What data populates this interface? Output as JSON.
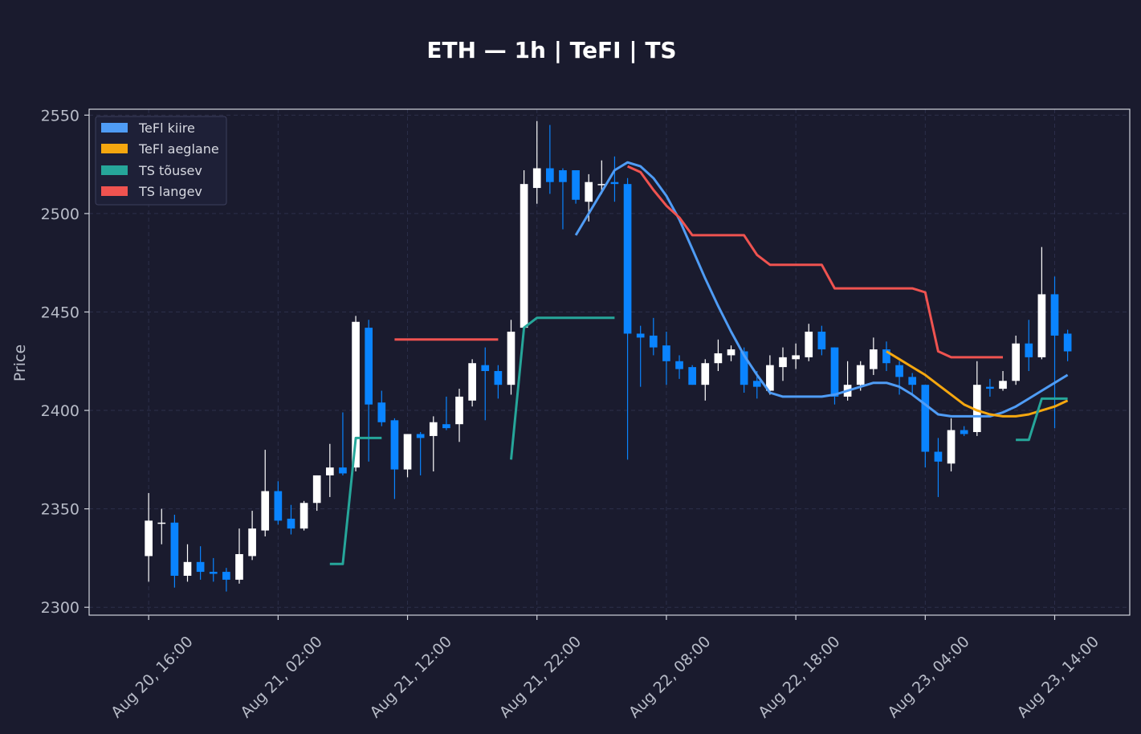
{
  "chart_data": {
    "type": "candlestick",
    "title": "ETH — 1h  |  TeFI  |  TS",
    "ylabel": "Price",
    "ylim": [
      2296,
      2553
    ],
    "yticks": [
      2300,
      2350,
      2400,
      2450,
      2500,
      2550
    ],
    "xticks": [
      {
        "index": 0,
        "label": "Aug 20, 16:00"
      },
      {
        "index": 10,
        "label": "Aug 21, 02:00"
      },
      {
        "index": 20,
        "label": "Aug 21, 12:00"
      },
      {
        "index": 30,
        "label": "Aug 21, 22:00"
      },
      {
        "index": 40,
        "label": "Aug 22, 08:00"
      },
      {
        "index": 50,
        "label": "Aug 22, 18:00"
      },
      {
        "index": 60,
        "label": "Aug 23, 04:00"
      },
      {
        "index": 70,
        "label": "Aug 23, 14:00"
      }
    ],
    "xlim": [
      -4.6,
      75.8
    ],
    "grid": true,
    "legend_position": "top-left",
    "colors": {
      "background": "#1a1b2e",
      "up": "#ffffff",
      "down": "#0a84ff",
      "fast": "#4f9cf5",
      "slow": "#f5a70f",
      "ts_up": "#26a69a",
      "ts_down": "#ef5350"
    },
    "legend": [
      {
        "label": "TeFl kiire",
        "color": "#4f9cf5"
      },
      {
        "label": "TeFl aeglane",
        "color": "#f5a70f"
      },
      {
        "label": "TS tõusev",
        "color": "#26a69a"
      },
      {
        "label": "TS langev",
        "color": "#ef5350"
      }
    ],
    "candles": [
      [
        2326,
        2358,
        2313,
        2344
      ],
      [
        2343,
        2350,
        2332,
        2343
      ],
      [
        2343,
        2347,
        2310,
        2316
      ],
      [
        2316,
        2332,
        2313,
        2323
      ],
      [
        2323,
        2331,
        2314,
        2318
      ],
      [
        2318,
        2325,
        2313,
        2317
      ],
      [
        2318,
        2320,
        2308,
        2314
      ],
      [
        2314,
        2340,
        2312,
        2327
      ],
      [
        2326,
        2349,
        2324,
        2340
      ],
      [
        2339,
        2380,
        2336,
        2359
      ],
      [
        2359,
        2364,
        2342,
        2344
      ],
      [
        2345,
        2352,
        2337,
        2340
      ],
      [
        2340,
        2354,
        2339,
        2353
      ],
      [
        2353,
        2367,
        2349,
        2367
      ],
      [
        2367,
        2383,
        2356,
        2371
      ],
      [
        2371,
        2399,
        2367,
        2368
      ],
      [
        2371,
        2448,
        2369,
        2445
      ],
      [
        2442,
        2446,
        2374,
        2403
      ],
      [
        2404,
        2410,
        2392,
        2394
      ],
      [
        2395,
        2396,
        2355,
        2370
      ],
      [
        2370,
        2388,
        2366,
        2388
      ],
      [
        2388,
        2389,
        2367,
        2386
      ],
      [
        2387,
        2397,
        2369,
        2394
      ],
      [
        2393,
        2407,
        2390,
        2391
      ],
      [
        2393,
        2411,
        2384,
        2407
      ],
      [
        2405,
        2426,
        2402,
        2424
      ],
      [
        2423,
        2432,
        2395,
        2420
      ],
      [
        2420,
        2423,
        2406,
        2413
      ],
      [
        2413,
        2446,
        2408,
        2440
      ],
      [
        2442,
        2522,
        2440,
        2515
      ],
      [
        2513,
        2547,
        2505,
        2523
      ],
      [
        2523,
        2545,
        2510,
        2516
      ],
      [
        2522,
        2523,
        2492,
        2516
      ],
      [
        2522,
        2522,
        2505,
        2507
      ],
      [
        2506,
        2520,
        2496,
        2516
      ],
      [
        2515,
        2527,
        2510,
        2515
      ],
      [
        2516,
        2529,
        2506,
        2515
      ],
      [
        2515,
        2518,
        2375,
        2439
      ],
      [
        2439,
        2443,
        2412,
        2437
      ],
      [
        2438,
        2447,
        2428,
        2432
      ],
      [
        2433,
        2440,
        2413,
        2425
      ],
      [
        2425,
        2428,
        2416,
        2421
      ],
      [
        2422,
        2423,
        2413,
        2413
      ],
      [
        2413,
        2426,
        2405,
        2424
      ],
      [
        2424,
        2436,
        2420,
        2429
      ],
      [
        2428,
        2433,
        2425,
        2431
      ],
      [
        2430,
        2432,
        2409,
        2413
      ],
      [
        2415,
        2420,
        2406,
        2412
      ],
      [
        2410,
        2428,
        2408,
        2423
      ],
      [
        2422,
        2432,
        2415,
        2427
      ],
      [
        2426,
        2434,
        2421,
        2428
      ],
      [
        2427,
        2444,
        2425,
        2440
      ],
      [
        2440,
        2443,
        2428,
        2431
      ],
      [
        2432,
        2432,
        2403,
        2407
      ],
      [
        2407,
        2425,
        2405,
        2413
      ],
      [
        2413,
        2425,
        2410,
        2423
      ],
      [
        2421,
        2437,
        2418,
        2431
      ],
      [
        2431,
        2435,
        2420,
        2424
      ],
      [
        2423,
        2425,
        2408,
        2417
      ],
      [
        2417,
        2419,
        2408,
        2413
      ],
      [
        2413,
        2413,
        2371,
        2379
      ],
      [
        2379,
        2386,
        2356,
        2374
      ],
      [
        2373,
        2396,
        2369,
        2390
      ],
      [
        2390,
        2392,
        2387,
        2388
      ],
      [
        2389,
        2425,
        2387,
        2413
      ],
      [
        2412,
        2416,
        2407,
        2411
      ],
      [
        2411,
        2420,
        2410,
        2415
      ],
      [
        2415,
        2438,
        2413,
        2434
      ],
      [
        2434,
        2446,
        2420,
        2427
      ],
      [
        2427,
        2483,
        2426,
        2459
      ],
      [
        2459,
        2468,
        2391,
        2438
      ],
      [
        2439,
        2441,
        2425,
        2430
      ]
    ],
    "series": [
      {
        "name": "TeFl kiire",
        "color": "#4f9cf5",
        "x": [
          33,
          34,
          35,
          36,
          37,
          38,
          39,
          40,
          41,
          42,
          43,
          44,
          45,
          46,
          47,
          48,
          49,
          50,
          51,
          52,
          53,
          54,
          55,
          56,
          57,
          58,
          59,
          60,
          61,
          62,
          63,
          64,
          65,
          66,
          67,
          68,
          69,
          70,
          71
        ],
        "y": [
          2489,
          2500,
          2511,
          2522,
          2526,
          2524,
          2518,
          2509,
          2497,
          2482,
          2467,
          2453,
          2440,
          2428,
          2418,
          2409,
          2407,
          2407,
          2407,
          2407,
          2408,
          2410,
          2412,
          2414,
          2414,
          2412,
          2408,
          2403,
          2398,
          2397,
          2397,
          2397,
          2397,
          2399,
          2402,
          2406,
          2410,
          2414,
          2418
        ]
      },
      {
        "name": "TeFl aeglane",
        "color": "#f5a70f",
        "x": [
          57,
          58,
          59,
          60,
          61,
          62,
          63,
          64,
          65,
          66,
          67,
          68,
          69,
          70,
          71
        ],
        "y": [
          2430,
          2426,
          2422,
          2418,
          2413,
          2408,
          2403,
          2400,
          2398,
          2397,
          2397,
          2398,
          2400,
          2402,
          2405
        ]
      },
      {
        "name": "TS tõusev",
        "color": "#26a69a",
        "segments": [
          {
            "x": [
              14,
              15,
              16,
              17,
              18
            ],
            "y": [
              2322,
              2322,
              2386,
              2386,
              2386
            ]
          },
          {
            "x": [
              28,
              29,
              30,
              31,
              32,
              33,
              34,
              35,
              36
            ],
            "y": [
              2375,
              2442,
              2447,
              2447,
              2447,
              2447,
              2447,
              2447,
              2447
            ]
          },
          {
            "x": [
              67,
              68,
              69,
              70,
              71
            ],
            "y": [
              2385,
              2385,
              2406,
              2406,
              2406
            ]
          }
        ]
      },
      {
        "name": "TS langev",
        "color": "#ef5350",
        "segments": [
          {
            "x": [
              19,
              20,
              21,
              22,
              23,
              24,
              25,
              26,
              27
            ],
            "y": [
              2436,
              2436,
              2436,
              2436,
              2436,
              2436,
              2436,
              2436,
              2436
            ]
          },
          {
            "x": [
              37,
              38,
              39,
              40,
              41,
              42,
              43,
              44,
              45,
              46,
              47,
              48,
              49,
              50,
              51,
              52,
              53,
              54,
              55,
              56,
              57,
              58,
              59,
              60,
              61,
              62,
              63,
              64,
              65,
              66
            ],
            "y": [
              2524,
              2521,
              2512,
              2504,
              2498,
              2489,
              2489,
              2489,
              2489,
              2489,
              2479,
              2474,
              2474,
              2474,
              2474,
              2474,
              2462,
              2462,
              2462,
              2462,
              2462,
              2462,
              2462,
              2460,
              2430,
              2427,
              2427,
              2427,
              2427,
              2427
            ]
          }
        ]
      }
    ]
  }
}
